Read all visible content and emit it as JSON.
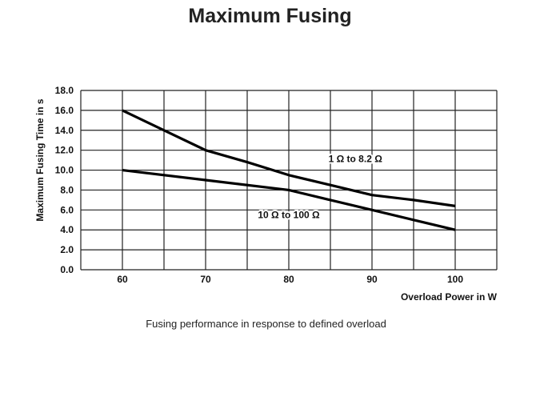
{
  "title": "Maximum Fusing",
  "caption": "Fusing performance in response to defined overload",
  "chart_data": {
    "type": "line",
    "xlabel": "Overload Power in W",
    "ylabel": "Maximum Fusing Time in s",
    "xlim": [
      55,
      105
    ],
    "ylim": [
      0,
      18
    ],
    "xticks": [
      60,
      70,
      80,
      90,
      100
    ],
    "xtick_labels": [
      "60",
      "70",
      "80",
      "90",
      "100"
    ],
    "yticks": [
      0,
      2,
      4,
      6,
      8,
      10,
      12,
      14,
      16,
      18
    ],
    "ytick_labels": [
      "0.0",
      "2.0",
      "4.0",
      "6.0",
      "8.0",
      "10.0",
      "12.0",
      "14.0",
      "16.0",
      "18.0"
    ],
    "grid": true,
    "series": [
      {
        "name": "1 Ω to 8.2 Ω",
        "x": [
          60,
          65,
          70,
          75,
          80,
          85,
          90,
          95,
          100
        ],
        "y": [
          16,
          14,
          12,
          10.8,
          9.5,
          8.5,
          7.5,
          7.0,
          6.4
        ],
        "label_at": [
          88,
          10.8
        ]
      },
      {
        "name": "10 Ω to 100 Ω",
        "x": [
          60,
          70,
          80,
          85,
          90,
          95,
          100
        ],
        "y": [
          10,
          9,
          8,
          7,
          6,
          5,
          4
        ],
        "label_at": [
          80,
          5.2
        ]
      }
    ]
  }
}
